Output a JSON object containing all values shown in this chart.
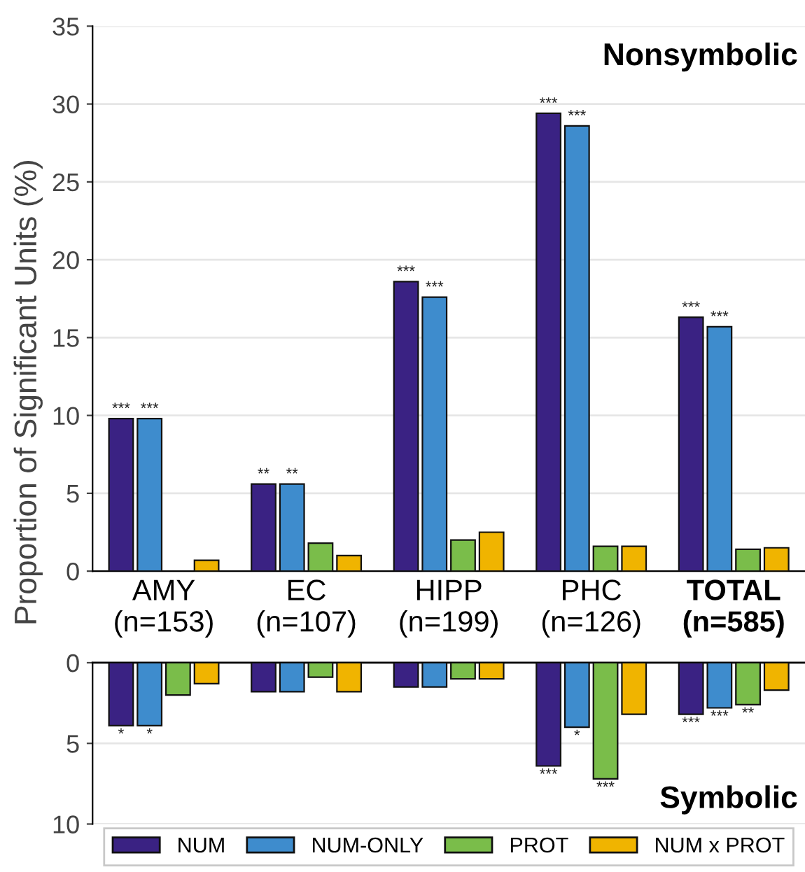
{
  "chart_data": [
    {
      "type": "bar",
      "title": "Nonsymbolic",
      "ylabel": "Proportion of Significant Units (%)",
      "categories": [
        "AMY\n(n=153)",
        "EC\n(n=107)",
        "HIPP\n(n=199)",
        "PHC\n(n=126)",
        "TOTAL\n(n=585)"
      ],
      "series": [
        {
          "name": "NUM",
          "color": "#3a2283",
          "values": [
            9.8,
            5.6,
            18.6,
            29.4,
            16.3
          ],
          "value_labels": [
            "***",
            "**",
            "***",
            "***",
            "***"
          ]
        },
        {
          "name": "NUM-ONLY",
          "color": "#3e8ccd",
          "values": [
            9.8,
            5.6,
            17.6,
            28.6,
            15.7
          ],
          "value_labels": [
            "***",
            "**",
            "***",
            "***",
            "***"
          ]
        },
        {
          "name": "PROT",
          "color": "#7abd4a",
          "values": [
            null,
            1.8,
            2.0,
            1.6,
            1.4
          ]
        },
        {
          "name": "NUM x PROT",
          "color": "#f0b400",
          "values": [
            0.7,
            1.0,
            2.5,
            1.6,
            1.5
          ]
        }
      ],
      "ylim": [
        0,
        35
      ],
      "yticks": [
        0,
        5,
        10,
        15,
        20,
        25,
        30,
        35
      ],
      "grid": "y",
      "legend": "bottom"
    },
    {
      "type": "bar",
      "title": "Symbolic",
      "categories": [
        null,
        null,
        null,
        null,
        null
      ],
      "series": [
        {
          "color": "#3a2283",
          "values": [
            3.9,
            1.8,
            1.5,
            6.4,
            3.2
          ],
          "value_labels": [
            "*",
            null,
            null,
            "***",
            "***"
          ]
        },
        {
          "color": "#3e8ccd",
          "values": [
            3.9,
            1.8,
            1.5,
            4.0,
            2.8
          ],
          "value_labels": [
            "*",
            null,
            null,
            "*",
            "***"
          ]
        },
        {
          "color": "#7abd4a",
          "values": [
            2.0,
            0.9,
            1.0,
            7.2,
            2.6
          ],
          "value_labels": [
            null,
            null,
            null,
            "***",
            "**"
          ]
        },
        {
          "color": "#f0b400",
          "values": [
            1.3,
            1.8,
            1.0,
            3.2,
            1.7
          ]
        }
      ],
      "ylim": [
        10,
        0
      ],
      "yticks": [
        0,
        5,
        10
      ],
      "grid": "y",
      "tick_labels": "y"
    }
  ]
}
